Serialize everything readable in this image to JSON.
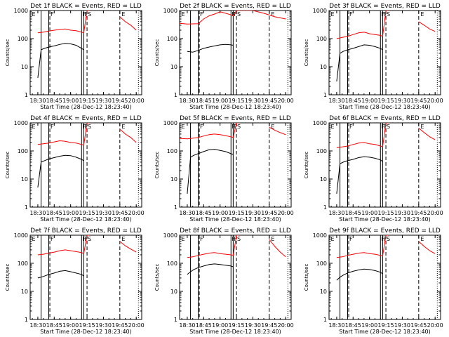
{
  "figure": {
    "ylabel": "Counts/sec",
    "x_tick_labels": [
      "18:30",
      "18:45",
      "19:00",
      "19:15",
      "19:30",
      "19:45",
      "20:00"
    ],
    "y_tick_labels": [
      "1",
      "10",
      "100",
      "1000"
    ],
    "colors": {
      "events": "#000000",
      "lld": "#ff0000",
      "axes": "#000000",
      "background": "#ffffff"
    }
  },
  "chart_data": [
    {
      "type": "line",
      "title": "Det 1f BLACK = Events, RED = LLD",
      "xlabel": "Start Time (28-Dec-12 18:23:40)",
      "ylabel": "Counts/sec",
      "yscale": "log",
      "ylim": [
        1,
        1000
      ],
      "x_ticks": [
        "18:30",
        "18:45",
        "19:00",
        "19:15",
        "19:30",
        "19:45",
        "20:00"
      ],
      "markers": [
        "E",
        "F",
        "F",
        "F",
        "S",
        "E"
      ],
      "series": [
        {
          "name": "BLACK = Events",
          "color": "#000000",
          "x": [
            "18:30",
            "18:33",
            "18:36",
            "18:40",
            "18:45",
            "18:50",
            "18:55",
            "19:00",
            "19:05",
            "19:10",
            "19:12"
          ],
          "values": [
            4,
            40,
            45,
            50,
            55,
            62,
            68,
            65,
            58,
            45,
            40
          ]
        },
        {
          "name": "RED = LLD",
          "color": "#ff0000",
          "x": [
            "18:30",
            "18:35",
            "18:40",
            "18:45",
            "18:50",
            "18:55",
            "19:00",
            "19:05",
            "19:10",
            "19:12",
            "19:15",
            "19:17",
            "19:45",
            "19:50",
            "19:55",
            "20:00"
          ],
          "values": [
            160,
            170,
            185,
            200,
            210,
            220,
            200,
            190,
            170,
            160,
            1000,
            1000,
            600,
            400,
            300,
            200
          ]
        }
      ]
    },
    {
      "type": "line",
      "title": "Det 2f BLACK = Events, RED = LLD",
      "xlabel": "Start Time (28-Dec-12 18:23:40)",
      "ylabel": "Counts/sec",
      "yscale": "log",
      "ylim": [
        1,
        1000
      ],
      "x_ticks": [
        "18:30",
        "18:45",
        "19:00",
        "19:15",
        "19:30",
        "19:45",
        "20:00"
      ],
      "markers": [
        "E",
        "F",
        "F",
        "F",
        "S",
        "E"
      ],
      "series": [
        {
          "name": "BLACK = Events",
          "color": "#000000",
          "x": [
            "18:30",
            "18:35",
            "18:40",
            "18:45",
            "18:50",
            "18:55",
            "19:00",
            "19:05",
            "19:10",
            "19:12"
          ],
          "values": [
            35,
            33,
            38,
            45,
            50,
            55,
            60,
            62,
            60,
            58
          ]
        },
        {
          "name": "RED = LLD",
          "color": "#ff0000",
          "x": [
            "18:23",
            "18:30",
            "18:40",
            "18:45",
            "18:50",
            "18:55",
            "19:00",
            "19:05",
            "19:10",
            "19:12",
            "19:15",
            "19:20",
            "19:30",
            "19:40",
            "19:50",
            "20:00"
          ],
          "values": [
            350,
            330,
            340,
            500,
            650,
            750,
            900,
            800,
            700,
            650,
            1000,
            1000,
            1000,
            800,
            600,
            500
          ]
        }
      ]
    },
    {
      "type": "line",
      "title": "Det 3f BLACK = Events, RED = LLD",
      "xlabel": "Start Time (28-Dec-12 18:23:40)",
      "ylabel": "Counts/sec",
      "yscale": "log",
      "ylim": [
        1,
        1000
      ],
      "x_ticks": [
        "18:30",
        "18:45",
        "19:00",
        "19:15",
        "19:30",
        "19:45",
        "20:00"
      ],
      "markers": [
        "E",
        "F",
        "F",
        "F",
        "S",
        "E"
      ],
      "series": [
        {
          "name": "BLACK = Events",
          "color": "#000000",
          "x": [
            "18:30",
            "18:33",
            "18:36",
            "18:40",
            "18:45",
            "18:50",
            "18:55",
            "19:00",
            "19:05",
            "19:10",
            "19:12"
          ],
          "values": [
            3,
            30,
            35,
            40,
            45,
            52,
            60,
            58,
            52,
            45,
            40
          ]
        },
        {
          "name": "RED = LLD",
          "color": "#ff0000",
          "x": [
            "18:30",
            "18:35",
            "18:40",
            "18:45",
            "18:50",
            "18:55",
            "19:00",
            "19:05",
            "19:10",
            "19:12",
            "19:15",
            "19:17",
            "19:45",
            "19:50",
            "19:55",
            "20:00"
          ],
          "values": [
            100,
            110,
            120,
            140,
            160,
            170,
            150,
            140,
            130,
            120,
            1000,
            1000,
            400,
            300,
            220,
            180
          ]
        }
      ]
    },
    {
      "type": "line",
      "title": "Det 4f BLACK = Events, RED = LLD",
      "xlabel": "Start Time (28-Dec-12 18:23:40)",
      "ylabel": "Counts/sec",
      "yscale": "log",
      "ylim": [
        1,
        1000
      ],
      "x_ticks": [
        "18:30",
        "18:45",
        "19:00",
        "19:15",
        "19:30",
        "19:45",
        "20:00"
      ],
      "markers": [
        "E",
        "F",
        "F",
        "F",
        "S",
        "E"
      ],
      "series": [
        {
          "name": "BLACK = Events",
          "color": "#000000",
          "x": [
            "18:30",
            "18:33",
            "18:36",
            "18:40",
            "18:45",
            "18:50",
            "18:55",
            "19:00",
            "19:05",
            "19:10",
            "19:12"
          ],
          "values": [
            5,
            40,
            45,
            52,
            58,
            65,
            70,
            68,
            60,
            50,
            45
          ]
        },
        {
          "name": "RED = LLD",
          "color": "#ff0000",
          "x": [
            "18:30",
            "18:35",
            "18:40",
            "18:45",
            "18:50",
            "18:55",
            "19:00",
            "19:05",
            "19:10",
            "19:12",
            "19:15",
            "19:17",
            "19:45",
            "19:50",
            "19:55",
            "20:00"
          ],
          "values": [
            170,
            180,
            190,
            210,
            230,
            220,
            200,
            190,
            170,
            160,
            1000,
            1000,
            600,
            400,
            300,
            200
          ]
        }
      ]
    },
    {
      "type": "line",
      "title": "Det 5f BLACK = Events, RED = LLD",
      "xlabel": "Start Time (28-Dec-12 18:23:40)",
      "ylabel": "Counts/sec",
      "yscale": "log",
      "ylim": [
        1,
        1000
      ],
      "x_ticks": [
        "18:30",
        "18:45",
        "19:00",
        "19:15",
        "19:30",
        "19:45",
        "20:00"
      ],
      "markers": [
        "E",
        "F",
        "F",
        "F",
        "S",
        "E"
      ],
      "series": [
        {
          "name": "BLACK = Events",
          "color": "#000000",
          "x": [
            "18:30",
            "18:33",
            "18:36",
            "18:40",
            "18:45",
            "18:50",
            "18:55",
            "19:00",
            "19:05",
            "19:10",
            "19:12"
          ],
          "values": [
            3,
            60,
            70,
            80,
            95,
            110,
            115,
            105,
            95,
            80,
            75
          ]
        },
        {
          "name": "RED = LLD",
          "color": "#ff0000",
          "x": [
            "18:23",
            "18:30",
            "18:40",
            "18:45",
            "18:50",
            "18:55",
            "19:00",
            "19:05",
            "19:10",
            "19:12",
            "19:15",
            "19:17",
            "19:45",
            "19:50",
            "19:55",
            "20:00"
          ],
          "values": [
            280,
            270,
            300,
            340,
            380,
            400,
            380,
            350,
            320,
            300,
            1000,
            1000,
            700,
            550,
            450,
            380
          ]
        }
      ]
    },
    {
      "type": "line",
      "title": "Det 6f BLACK = Events, RED = LLD",
      "xlabel": "Start Time (28-Dec-12 18:23:40)",
      "ylabel": "Counts/sec",
      "yscale": "log",
      "ylim": [
        1,
        1000
      ],
      "x_ticks": [
        "18:30",
        "18:45",
        "19:00",
        "19:15",
        "19:30",
        "19:45",
        "20:00"
      ],
      "markers": [
        "E",
        "F",
        "F",
        "F",
        "S",
        "E"
      ],
      "series": [
        {
          "name": "BLACK = Events",
          "color": "#000000",
          "x": [
            "18:30",
            "18:33",
            "18:36",
            "18:40",
            "18:45",
            "18:50",
            "18:55",
            "19:00",
            "19:05",
            "19:10",
            "19:12"
          ],
          "values": [
            3,
            35,
            40,
            45,
            50,
            58,
            62,
            60,
            55,
            48,
            42
          ]
        },
        {
          "name": "RED = LLD",
          "color": "#ff0000",
          "x": [
            "18:30",
            "18:35",
            "18:40",
            "18:45",
            "18:50",
            "18:55",
            "19:00",
            "19:05",
            "19:10",
            "19:12",
            "19:15",
            "19:17",
            "19:45",
            "19:50",
            "19:55",
            "20:00"
          ],
          "values": [
            130,
            140,
            150,
            170,
            190,
            200,
            180,
            170,
            150,
            140,
            1000,
            1000,
            650,
            450,
            320,
            250
          ]
        }
      ]
    },
    {
      "type": "line",
      "title": "Det 7f BLACK = Events, RED = LLD",
      "xlabel": "Start Time (28-Dec-12 18:23:40)",
      "ylabel": "Counts/sec",
      "yscale": "log",
      "ylim": [
        1,
        1000
      ],
      "x_ticks": [
        "18:30",
        "18:45",
        "19:00",
        "19:15",
        "19:30",
        "19:45",
        "20:00"
      ],
      "markers": [
        "E",
        "F",
        "F",
        "F",
        "S",
        "E"
      ],
      "series": [
        {
          "name": "BLACK = Events",
          "color": "#000000",
          "x": [
            "18:30",
            "18:33",
            "18:36",
            "18:40",
            "18:45",
            "18:50",
            "18:55",
            "19:00",
            "19:05",
            "19:10",
            "19:12"
          ],
          "values": [
            30,
            32,
            35,
            40,
            45,
            52,
            55,
            50,
            45,
            40,
            35
          ]
        },
        {
          "name": "RED = LLD",
          "color": "#ff0000",
          "x": [
            "18:30",
            "18:35",
            "18:40",
            "18:45",
            "18:50",
            "18:55",
            "19:00",
            "19:05",
            "19:10",
            "19:12",
            "19:15",
            "19:17",
            "19:45",
            "19:50",
            "19:55",
            "20:00"
          ],
          "values": [
            200,
            210,
            230,
            250,
            280,
            300,
            280,
            260,
            240,
            220,
            1000,
            1000,
            600,
            420,
            320,
            250
          ]
        }
      ]
    },
    {
      "type": "line",
      "title": "Det 8f BLACK = Events, RED = LLD",
      "xlabel": "Start Time (28-Dec-12 18:23:40)",
      "ylabel": "Counts/sec",
      "yscale": "log",
      "ylim": [
        1,
        1000
      ],
      "x_ticks": [
        "18:30",
        "18:45",
        "19:00",
        "19:15",
        "19:30",
        "19:45",
        "20:00"
      ],
      "markers": [
        "E",
        "F",
        "F",
        "F",
        "S",
        "E"
      ],
      "series": [
        {
          "name": "BLACK = Events",
          "color": "#000000",
          "x": [
            "18:30",
            "18:33",
            "18:36",
            "18:40",
            "18:45",
            "18:50",
            "18:55",
            "19:00",
            "19:05",
            "19:10",
            "19:12"
          ],
          "values": [
            40,
            50,
            60,
            70,
            80,
            90,
            95,
            90,
            85,
            80,
            75
          ]
        },
        {
          "name": "RED = LLD",
          "color": "#ff0000",
          "x": [
            "18:30",
            "18:35",
            "18:40",
            "18:45",
            "18:50",
            "18:55",
            "19:00",
            "19:05",
            "19:10",
            "19:12",
            "19:15",
            "19:17",
            "19:45",
            "19:50",
            "19:55",
            "20:00"
          ],
          "values": [
            160,
            170,
            190,
            210,
            230,
            240,
            220,
            210,
            200,
            190,
            1000,
            1000,
            700,
            400,
            250,
            170
          ]
        }
      ]
    },
    {
      "type": "line",
      "title": "Det 9f BLACK = Events, RED = LLD",
      "xlabel": "Start Time (28-Dec-12 18:23:40)",
      "ylabel": "Counts/sec",
      "yscale": "log",
      "ylim": [
        1,
        1000
      ],
      "x_ticks": [
        "18:30",
        "18:45",
        "19:00",
        "19:15",
        "19:30",
        "19:45",
        "20:00"
      ],
      "markers": [
        "E",
        "F",
        "F",
        "F",
        "S",
        "E"
      ],
      "series": [
        {
          "name": "BLACK = Events",
          "color": "#000000",
          "x": [
            "18:30",
            "18:33",
            "18:36",
            "18:40",
            "18:45",
            "18:50",
            "18:55",
            "19:00",
            "19:05",
            "19:10",
            "19:12"
          ],
          "values": [
            25,
            32,
            38,
            45,
            52,
            58,
            62,
            60,
            55,
            48,
            42
          ]
        },
        {
          "name": "RED = LLD",
          "color": "#ff0000",
          "x": [
            "18:30",
            "18:35",
            "18:40",
            "18:45",
            "18:50",
            "18:55",
            "19:00",
            "19:05",
            "19:10",
            "19:12",
            "19:15",
            "19:17",
            "19:45",
            "19:50",
            "19:55",
            "20:00"
          ],
          "values": [
            160,
            170,
            190,
            210,
            230,
            240,
            220,
            210,
            190,
            180,
            1000,
            1000,
            600,
            400,
            280,
            220
          ]
        }
      ]
    }
  ]
}
